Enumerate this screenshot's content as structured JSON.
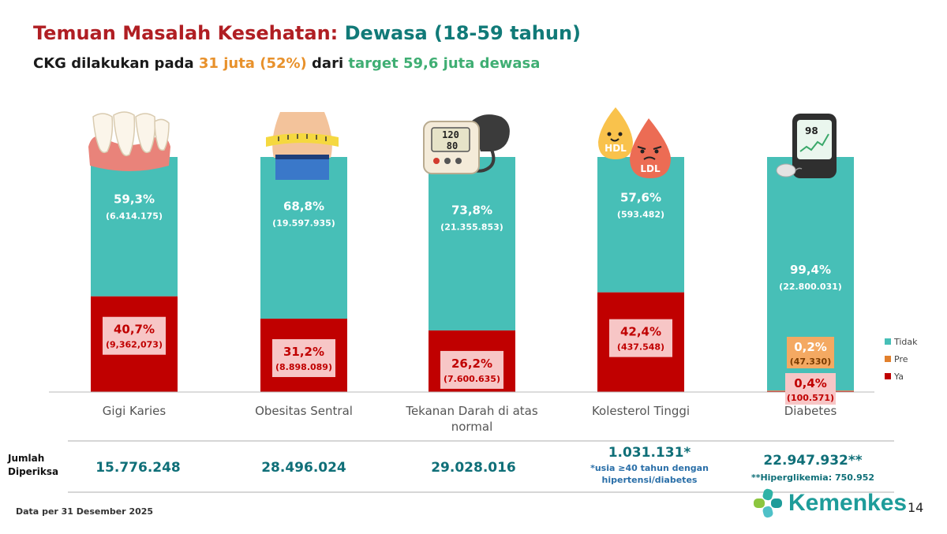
{
  "header": {
    "title_a": "Temuan Masalah Kesehatan:",
    "title_b": "Dewasa (18-59 tahun)",
    "subtitle_a": "CKG dilakukan pada",
    "subtitle_b": "31 juta (52%)",
    "subtitle_c": "dari",
    "subtitle_d": "target 59,6 juta dewasa"
  },
  "colors": {
    "tidak": "#47bfb7",
    "ya": "#c00000",
    "pre": "#e2802c",
    "label_ya_bg": "#f7c6c6",
    "label_pre_bg": "#f4a962"
  },
  "chart_data": {
    "type": "bar",
    "stacked": "percent",
    "categories": [
      "Gigi Karies",
      "Obesitas Sentral",
      "Tekanan Darah di atas normal",
      "Kolesterol Tinggi",
      "Diabetes"
    ],
    "series": [
      {
        "name": "Tidak",
        "values": [
          59.3,
          68.8,
          73.8,
          57.6,
          99.4
        ],
        "labels": [
          "59,3%",
          "68,8%",
          "73,8%",
          "57,6%",
          "99,4%"
        ],
        "counts": [
          "(6.414.175)",
          "(19.597.935)",
          "(21.355.853)",
          "(593.482)",
          "(22.800.031)"
        ]
      },
      {
        "name": "Pre",
        "values": [
          0,
          0,
          0,
          0,
          0.2
        ],
        "labels": [
          "",
          "",
          "",
          "",
          "0,2%"
        ],
        "counts": [
          "",
          "",
          "",
          "",
          "(47.330)"
        ]
      },
      {
        "name": "Ya",
        "values": [
          40.7,
          31.2,
          26.2,
          42.4,
          0.4
        ],
        "labels": [
          "40,7%",
          "31,2%",
          "26,2%",
          "42,4%",
          "0,4%"
        ],
        "counts": [
          "(9,362,073)",
          "(8.898.089)",
          "(7.600.635)",
          "(437.548)",
          "(100.571)"
        ]
      }
    ],
    "legend": {
      "position": "right",
      "entries": [
        "Tidak",
        "Pre",
        "Ya"
      ]
    },
    "ylim": [
      0,
      100
    ],
    "grid": false
  },
  "table": {
    "row_label": "Jumlah Diperiksa",
    "values": [
      "15.776.248",
      "28.496.024",
      "29.028.016",
      "1.031.131*",
      "22.947.932**"
    ],
    "notes": [
      "",
      "",
      "",
      "*usia ≥40 tahun dengan hipertensi/diabetes",
      "**Hiperglikemia: 750.952"
    ]
  },
  "footer": {
    "note": "Data per 31 Desember 2025",
    "page": "14",
    "brand": "Kemenkes"
  },
  "icons": [
    "teeth-icon",
    "waist-measure-icon",
    "blood-pressure-monitor-icon",
    "cholesterol-drops-icon",
    "glucometer-icon",
    "kemenkes-logo-icon"
  ],
  "icon_text": {
    "bp_sys": "120",
    "bp_dia": "80",
    "hdl": "HDL",
    "ldl": "LDL",
    "glucose": "98"
  }
}
